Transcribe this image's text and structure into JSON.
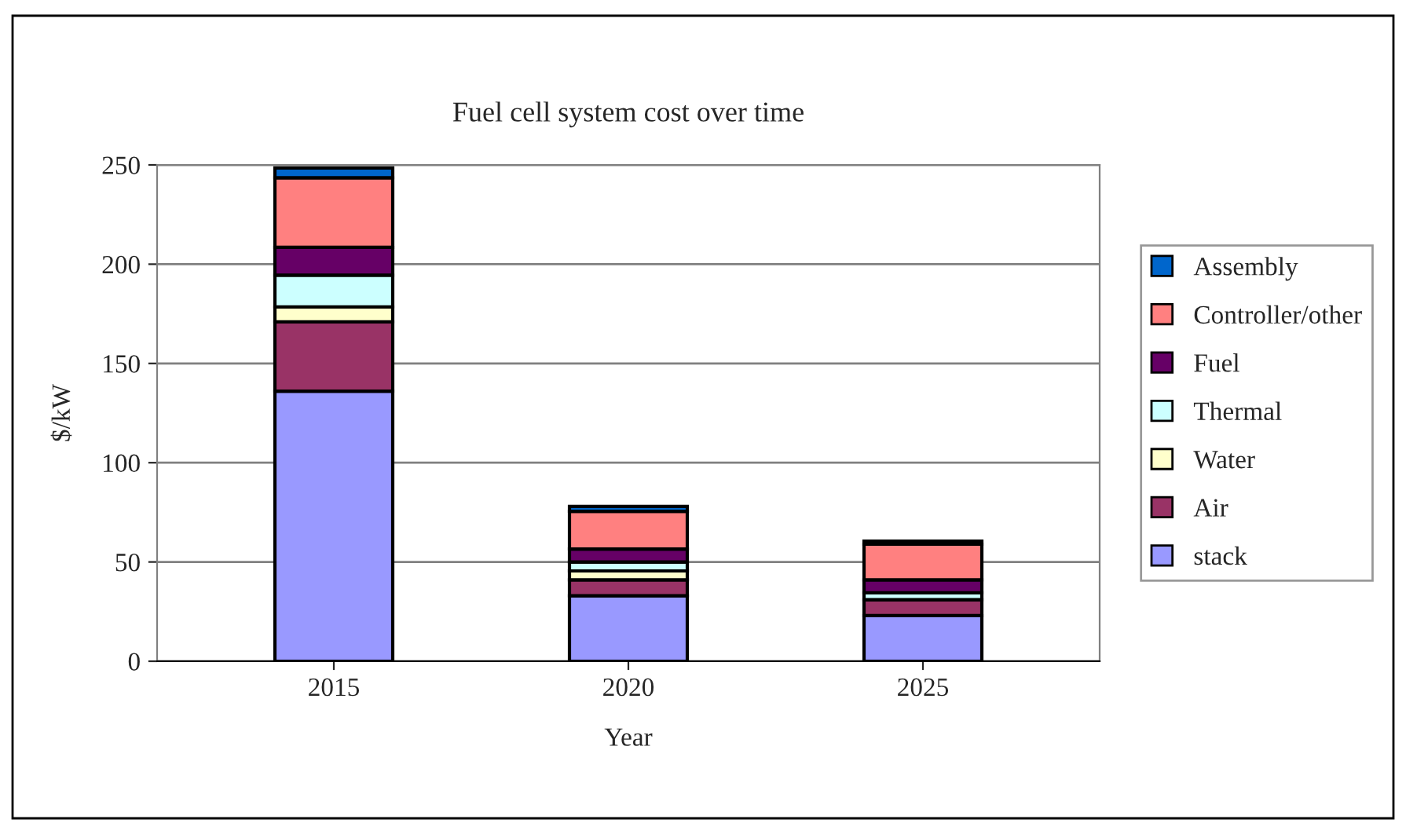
{
  "chart_data": {
    "type": "bar",
    "title": "Fuel cell system cost over time",
    "xlabel": "Year",
    "ylabel": "$/kW",
    "stacked": true,
    "categories": [
      "2015",
      "2020",
      "2025"
    ],
    "series": [
      {
        "name": "stack",
        "color": "#9999ff",
        "values": [
          136,
          33,
          23
        ]
      },
      {
        "name": "Air",
        "color": "#993366",
        "values": [
          35,
          8,
          8
        ]
      },
      {
        "name": "Water",
        "color": "#ffffcc",
        "values": [
          7.5,
          4.5,
          0
        ]
      },
      {
        "name": "Thermal",
        "color": "#ccffff",
        "values": [
          16,
          4.5,
          3.5
        ]
      },
      {
        "name": "Fuel",
        "color": "#660066",
        "values": [
          14,
          6.5,
          6.5
        ]
      },
      {
        "name": "Controller/other",
        "color": "#ff8080",
        "values": [
          35,
          19,
          18
        ]
      },
      {
        "name": "Assembly",
        "color": "#0066cc",
        "values": [
          5,
          2.5,
          1.5
        ]
      }
    ],
    "ylim": [
      0,
      250
    ],
    "yticks": [
      0,
      50,
      100,
      150,
      200,
      250
    ],
    "grid": "y",
    "legend": "right"
  }
}
